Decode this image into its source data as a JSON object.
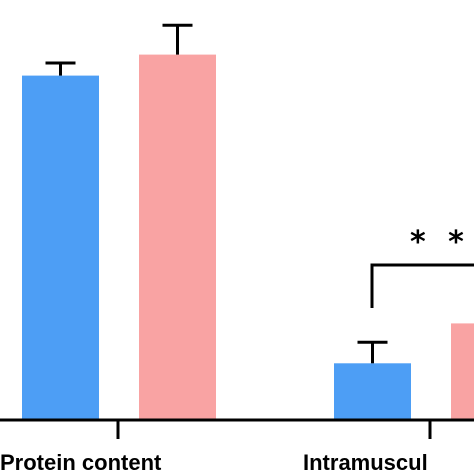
{
  "chart_data": {
    "type": "bar",
    "categories": [
      "Protein content",
      "Intramuscul"
    ],
    "series": [
      {
        "values": [
          82,
          13.5
        ],
        "errors": [
          3,
          5
        ],
        "color": "#4d9ef5"
      },
      {
        "values": [
          87,
          23
        ],
        "errors": [
          7,
          6
        ],
        "color": "#f9a3a3"
      }
    ],
    "ylim": [
      0,
      100
    ],
    "grid": false,
    "annotations": [
      {
        "text": "* *",
        "between": "Intramuscul"
      }
    ]
  }
}
